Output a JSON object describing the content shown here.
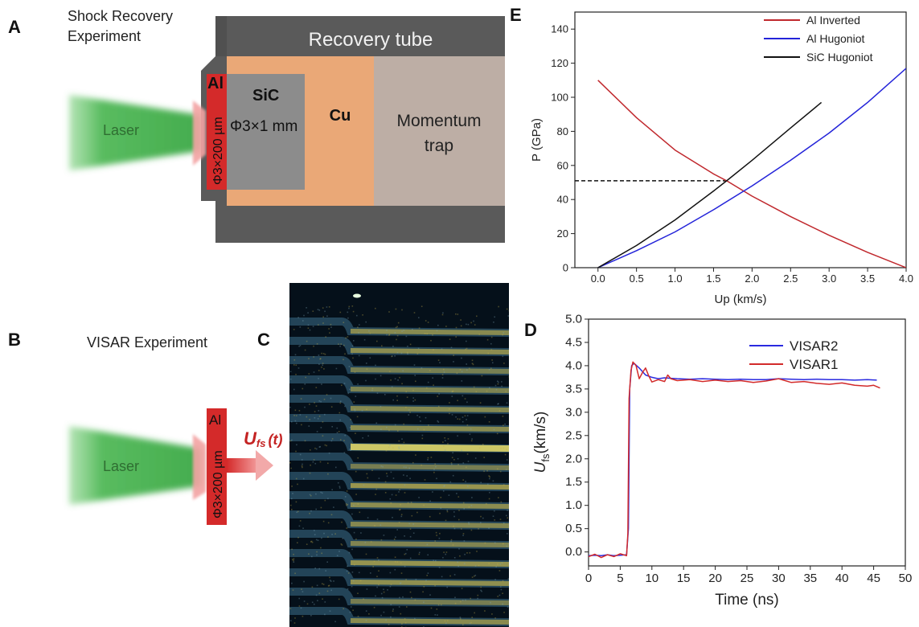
{
  "panel_a": {
    "label": "A",
    "title_line1": "Shock Recovery",
    "title_line2": "Experiment",
    "tube_label": "Recovery tube",
    "al_label": "Al",
    "al_dims": "Φ3×200 µm",
    "sic_label": "SiC",
    "sic_dims": "Φ3×1 mm",
    "cu_label": "Cu",
    "trap_line1": "Momentum",
    "trap_line2": "trap",
    "laser_label": "Laser",
    "colors": {
      "laser": "#3fae4a",
      "al": "#d42a2a",
      "sic": "#8c8c8c",
      "cu": "#eaa877",
      "trap": "#bdaea5",
      "tube": "#5a5a5a"
    }
  },
  "panel_b": {
    "label": "B",
    "title": "VISAR Experiment",
    "laser_label": "Laser",
    "al_label": "Al",
    "al_dims": "Φ3×200 µm",
    "ufs_main": "U",
    "ufs_sub": "fs",
    "ufs_arg": "(t)"
  },
  "panel_c": {
    "label": "C"
  },
  "panel_d": {
    "label": "D",
    "chart_data": {
      "type": "line",
      "xlabel": "Time (ns)",
      "ylabel_main": "U",
      "ylabel_sub": "fs",
      "ylabel_unit": "(km/s)",
      "xlim": [
        0,
        50
      ],
      "ylim": [
        -0.3,
        5.0
      ],
      "xticks": [
        "0",
        "5",
        "10",
        "15",
        "20",
        "25",
        "30",
        "35",
        "40",
        "45",
        "50"
      ],
      "yticks": [
        "0.0",
        "0.5",
        "1.0",
        "1.5",
        "2.0",
        "2.5",
        "3.0",
        "3.5",
        "4.0",
        "4.5",
        "5.0"
      ],
      "legend_position": "top-right",
      "series": [
        {
          "name": "VISAR2",
          "color": "#2a2ae0",
          "x": [
            0,
            1,
            2,
            3,
            4,
            5,
            6,
            6.3,
            6.5,
            6.8,
            7.2,
            8,
            9,
            10,
            11,
            12,
            13,
            14,
            16,
            18,
            20,
            22,
            24,
            26,
            28,
            30,
            32,
            34,
            36,
            38,
            40,
            42,
            44,
            45.5
          ],
          "y": [
            -0.08,
            -0.07,
            -0.08,
            -0.06,
            -0.08,
            -0.07,
            -0.06,
            0.5,
            3.5,
            4.0,
            4.05,
            3.95,
            3.8,
            3.75,
            3.72,
            3.74,
            3.73,
            3.72,
            3.71,
            3.72,
            3.71,
            3.7,
            3.71,
            3.7,
            3.7,
            3.72,
            3.71,
            3.7,
            3.71,
            3.7,
            3.7,
            3.69,
            3.7,
            3.69
          ]
        },
        {
          "name": "VISAR1",
          "color": "#d22a2a",
          "x": [
            0,
            1,
            2,
            3,
            4,
            5,
            6,
            6.2,
            6.4,
            6.7,
            7,
            7.5,
            8,
            8.5,
            9,
            9.5,
            10,
            11,
            12,
            12.5,
            13,
            14,
            16,
            18,
            20,
            22,
            24,
            26,
            28,
            30,
            32,
            34,
            36,
            38,
            40,
            42,
            44,
            45,
            46
          ],
          "y": [
            -0.1,
            -0.05,
            -0.12,
            -0.06,
            -0.1,
            -0.04,
            -0.08,
            0.4,
            3.3,
            3.9,
            4.08,
            4.0,
            3.72,
            3.85,
            3.95,
            3.78,
            3.65,
            3.7,
            3.66,
            3.8,
            3.72,
            3.68,
            3.7,
            3.66,
            3.69,
            3.66,
            3.68,
            3.64,
            3.67,
            3.72,
            3.64,
            3.66,
            3.62,
            3.6,
            3.63,
            3.58,
            3.56,
            3.58,
            3.52
          ]
        }
      ]
    }
  },
  "panel_e": {
    "label": "E",
    "chart_data": {
      "type": "line",
      "xlabel": "Up (km/s)",
      "ylabel": "P (GPa)",
      "xlim": [
        -0.3,
        4.0
      ],
      "ylim": [
        0,
        150
      ],
      "xticks": [
        "0.0",
        "0.5",
        "1.0",
        "1.5",
        "2.0",
        "2.5",
        "3.0",
        "3.5",
        "4.0"
      ],
      "yticks": [
        "0",
        "20",
        "40",
        "60",
        "80",
        "100",
        "120",
        "140"
      ],
      "legend_position": "top-right",
      "annotation": {
        "type": "dashed-line",
        "y": 51,
        "x_from": -0.3,
        "x_to": 1.67
      },
      "series": [
        {
          "name": "Al Inverted",
          "color": "#c0282d",
          "x": [
            0,
            0.5,
            1.0,
            1.5,
            1.67,
            2.0,
            2.5,
            3.0,
            3.5,
            4.0
          ],
          "y": [
            110,
            88,
            69,
            55,
            51,
            42,
            30,
            19,
            9,
            0
          ]
        },
        {
          "name": "Al Hugoniot",
          "color": "#2323d9",
          "x": [
            0,
            0.5,
            1.0,
            1.5,
            2.0,
            2.5,
            3.0,
            3.5,
            4.0
          ],
          "y": [
            0,
            10,
            21,
            34,
            48,
            63,
            79,
            97,
            117
          ]
        },
        {
          "name": "SiC Hugoniot",
          "color": "#111111",
          "x": [
            0,
            0.5,
            1.0,
            1.5,
            1.67,
            2.0,
            2.5,
            2.9
          ],
          "y": [
            0,
            13,
            28,
            45,
            51,
            63,
            82,
            97
          ]
        }
      ]
    }
  }
}
